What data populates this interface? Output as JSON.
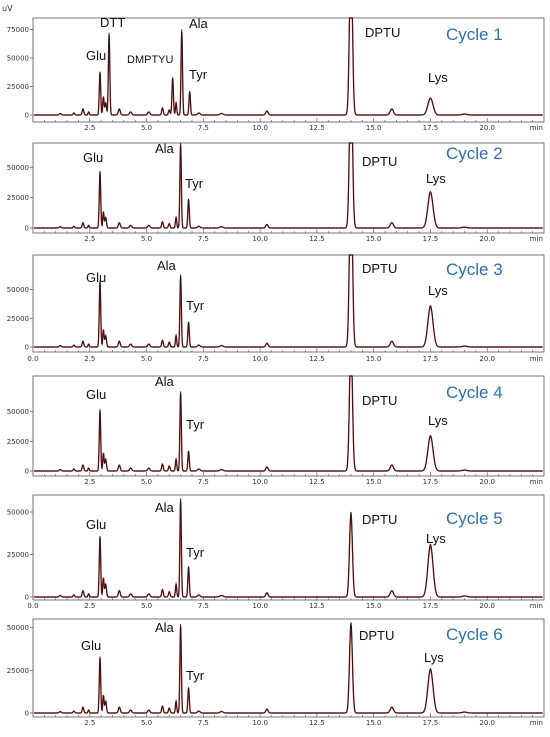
{
  "chart_data": {
    "type": "line",
    "panel_count": 6,
    "y_unit": "uV",
    "x_unit": "min",
    "xlim": [
      0,
      22.5
    ],
    "x_ticks": [
      2.5,
      5.0,
      7.5,
      10.0,
      12.5,
      15.0,
      17.5,
      20.0
    ],
    "x_tick_labels": [
      "2.5",
      "5.0",
      "7.5",
      "10.0",
      "12.5",
      "15.0",
      "17.5",
      "20.0"
    ],
    "x_tick_first_label": "0.0",
    "series_colors": [
      "#d42020",
      "#1a1a1a"
    ],
    "panels": [
      {
        "label": "Cycle 1",
        "ylim": [
          0,
          85000
        ],
        "y_ticks": [
          0,
          25000,
          50000,
          75000
        ],
        "y_tick_labels": [
          "0",
          "25000",
          "50000",
          "75000"
        ],
        "show_zero_x_label": false,
        "peaks": [
          {
            "label": "Glu",
            "x": 2.95,
            "y": 38000
          },
          {
            "label": "DTT",
            "x": 3.35,
            "y": 72000
          },
          {
            "label": "DMPTYU",
            "x": 6.15,
            "y": 33000
          },
          {
            "label": "Ala",
            "x": 6.55,
            "y": 75000
          },
          {
            "label": "Tyr",
            "x": 6.9,
            "y": 21000
          },
          {
            "label": "DPTU",
            "x": 14.0,
            "y": 150000
          },
          {
            "label": "Lys",
            "x": 17.5,
            "y": 15000
          }
        ]
      },
      {
        "label": "Cycle 2",
        "ylim": [
          0,
          70000
        ],
        "y_ticks": [
          0,
          25000,
          50000
        ],
        "y_tick_labels": [
          "0",
          "25000",
          "50000"
        ],
        "show_zero_x_label": false,
        "peaks": [
          {
            "label": "Glu",
            "x": 2.95,
            "y": 47000
          },
          {
            "label": "Ala",
            "x": 6.5,
            "y": 70000
          },
          {
            "label": "Tyr",
            "x": 6.85,
            "y": 24000
          },
          {
            "label": "DPTU",
            "x": 14.0,
            "y": 140000
          },
          {
            "label": "Lys",
            "x": 17.5,
            "y": 30000
          }
        ]
      },
      {
        "label": "Cycle 3",
        "ylim": [
          0,
          80000
        ],
        "y_ticks": [
          0,
          25000,
          50000
        ],
        "y_tick_labels": [
          "0",
          "25000",
          "50000"
        ],
        "show_zero_x_label": true,
        "peaks": [
          {
            "label": "Glu",
            "x": 2.95,
            "y": 58000
          },
          {
            "label": "Ala",
            "x": 6.5,
            "y": 63000
          },
          {
            "label": "Tyr",
            "x": 6.85,
            "y": 22000
          },
          {
            "label": "DPTU",
            "x": 14.0,
            "y": 160000
          },
          {
            "label": "Lys",
            "x": 17.5,
            "y": 36000
          }
        ]
      },
      {
        "label": "Cycle 4",
        "ylim": [
          0,
          80000
        ],
        "y_ticks": [
          0,
          25000,
          50000
        ],
        "y_tick_labels": [
          "0",
          "25000",
          "50000"
        ],
        "show_zero_x_label": false,
        "peaks": [
          {
            "label": "Glu",
            "x": 2.95,
            "y": 52000
          },
          {
            "label": "Ala",
            "x": 6.5,
            "y": 67000
          },
          {
            "label": "Tyr",
            "x": 6.85,
            "y": 17000
          },
          {
            "label": "DPTU",
            "x": 14.0,
            "y": 115000
          },
          {
            "label": "Lys",
            "x": 17.5,
            "y": 30000
          }
        ]
      },
      {
        "label": "Cycle 5",
        "ylim": [
          0,
          60000
        ],
        "y_ticks": [
          0,
          25000,
          50000
        ],
        "y_tick_labels": [
          "0",
          "25000",
          "50000"
        ],
        "show_zero_x_label": true,
        "peaks": [
          {
            "label": "Glu",
            "x": 2.95,
            "y": 36000
          },
          {
            "label": "Ala",
            "x": 6.5,
            "y": 58000
          },
          {
            "label": "Tyr",
            "x": 6.85,
            "y": 18000
          },
          {
            "label": "DPTU",
            "x": 14.0,
            "y": 50000
          },
          {
            "label": "Lys",
            "x": 17.5,
            "y": 31000
          }
        ]
      },
      {
        "label": "Cycle 6",
        "ylim": [
          0,
          55000
        ],
        "y_ticks": [
          0,
          25000,
          50000
        ],
        "y_tick_labels": [
          "0",
          "25000",
          "50000"
        ],
        "show_zero_x_label": false,
        "peaks": [
          {
            "label": "Glu",
            "x": 2.95,
            "y": 33000
          },
          {
            "label": "Ala",
            "x": 6.5,
            "y": 52000
          },
          {
            "label": "Tyr",
            "x": 6.85,
            "y": 15000
          },
          {
            "label": "DPTU",
            "x": 14.0,
            "y": 53000
          },
          {
            "label": "Lys",
            "x": 17.5,
            "y": 26000
          }
        ]
      }
    ]
  }
}
